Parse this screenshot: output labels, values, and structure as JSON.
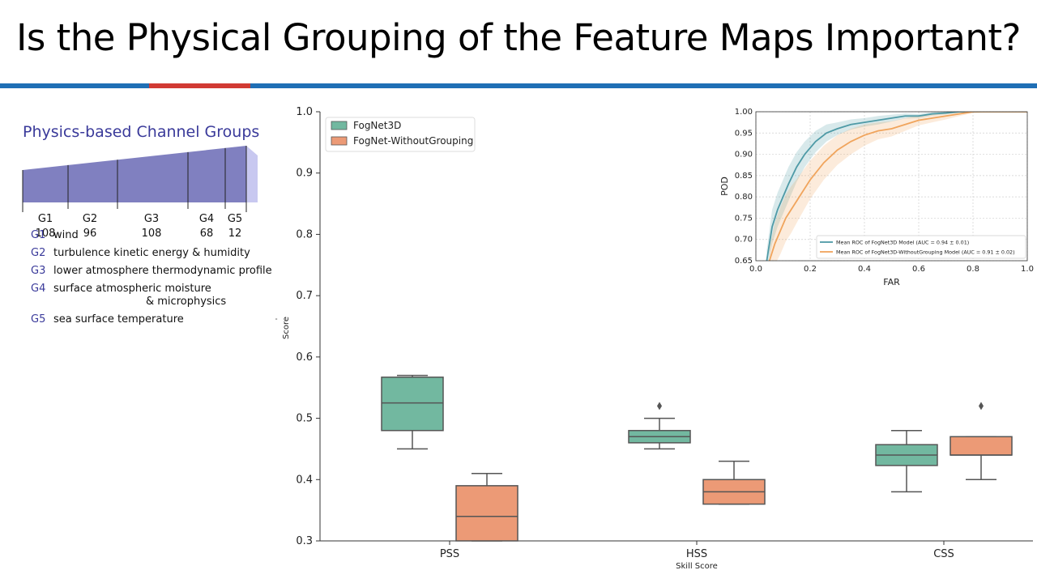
{
  "slide": {
    "title": "Is the Physical Grouping of the Feature Maps Important?"
  },
  "colors": {
    "rule_blue": "#1f6fb5",
    "rule_red": "#d13a33",
    "group_fill": "#8080c0",
    "group_fill_light": "#c8c8f0",
    "group_text": "#3a3a9a",
    "fognet3d": "#72b8a0",
    "fognet_without": "#ec9a76",
    "roc_fognet3d": "#4e9aa6",
    "roc_without": "#f0a45c"
  },
  "groups_panel": {
    "title": "Physics-based Channel Groups",
    "groups": [
      {
        "code": "G1",
        "count": "108",
        "desc": "wind",
        "desc2": ""
      },
      {
        "code": "G2",
        "count": "96",
        "desc": "turbulence kinetic energy & humidity",
        "desc2": ""
      },
      {
        "code": "G3",
        "count": "108",
        "desc": "lower atmosphere thermodynamic profile",
        "desc2": ""
      },
      {
        "code": "G4",
        "count": "68",
        "desc": "surface atmospheric moisture",
        "desc2": "& microphysics"
      },
      {
        "code": "G5",
        "count": "12",
        "desc": "sea surface temperature",
        "desc2": ""
      }
    ]
  },
  "chart_data": [
    {
      "type": "box",
      "title": "",
      "xlabel": "Skill Score",
      "ylabel": "Score",
      "ylabel_prefix": "'",
      "ylim": [
        0.3,
        1.0
      ],
      "yticks": [
        "0.3",
        "0.4",
        "0.5",
        "0.6",
        "0.7",
        "0.8",
        "0.9",
        "1.0"
      ],
      "categories": [
        "PSS",
        "HSS",
        "CSS"
      ],
      "legend_position": "top-left",
      "series": [
        {
          "name": "FogNet3D",
          "boxes": [
            {
              "whisker_low": 0.45,
              "q1": 0.48,
              "median": 0.525,
              "q3": 0.567,
              "whisker_high": 0.57,
              "outliers": []
            },
            {
              "whisker_low": 0.45,
              "q1": 0.46,
              "median": 0.47,
              "q3": 0.48,
              "whisker_high": 0.5,
              "outliers": [
                0.52
              ]
            },
            {
              "whisker_low": 0.38,
              "q1": 0.423,
              "median": 0.44,
              "q3": 0.457,
              "whisker_high": 0.48,
              "outliers": []
            }
          ]
        },
        {
          "name": "FogNet-WithoutGrouping",
          "boxes": [
            {
              "whisker_low": 0.3,
              "q1": 0.3,
              "median": 0.34,
              "q3": 0.39,
              "whisker_high": 0.41,
              "outliers": []
            },
            {
              "whisker_low": 0.36,
              "q1": 0.36,
              "median": 0.38,
              "q3": 0.4,
              "whisker_high": 0.43,
              "outliers": []
            },
            {
              "whisker_low": 0.4,
              "q1": 0.44,
              "median": 0.44,
              "q3": 0.47,
              "whisker_high": 0.47,
              "outliers": [
                0.52
              ]
            }
          ]
        }
      ]
    },
    {
      "type": "line",
      "title": "",
      "xlabel": "FAR",
      "ylabel": "POD",
      "xlim": [
        0.0,
        1.0
      ],
      "ylim": [
        0.65,
        1.0
      ],
      "xticks": [
        "0.0",
        "0.2",
        "0.4",
        "0.6",
        "0.8",
        "1.0"
      ],
      "yticks": [
        "0.65",
        "0.70",
        "0.75",
        "0.80",
        "0.85",
        "0.90",
        "0.95",
        "1.00"
      ],
      "grid": true,
      "legend_position": "bottom-right",
      "series": [
        {
          "name": "Mean ROC of FogNet3D Model (AUC = 0.94 ± 0.01)",
          "x": [
            0.04,
            0.06,
            0.08,
            0.1,
            0.12,
            0.15,
            0.18,
            0.22,
            0.26,
            0.3,
            0.35,
            0.4,
            0.45,
            0.5,
            0.55,
            0.6,
            0.65,
            0.7,
            0.75,
            0.8,
            0.9,
            1.0
          ],
          "y": [
            0.65,
            0.73,
            0.77,
            0.8,
            0.83,
            0.87,
            0.9,
            0.93,
            0.95,
            0.96,
            0.97,
            0.975,
            0.98,
            0.985,
            0.99,
            0.99,
            0.995,
            0.997,
            1.0,
            1.0,
            1.0,
            1.0
          ],
          "band": [
            0.025,
            0.04,
            0.04,
            0.04,
            0.04,
            0.035,
            0.03,
            0.025,
            0.02,
            0.015,
            0.012,
            0.01,
            0.01,
            0.008,
            0.006,
            0.005,
            0.004,
            0.003,
            0.002,
            0.0,
            0.0,
            0.0
          ]
        },
        {
          "name": "Mean ROC of FogNet3D-WithoutGrouping Model (AUC = 0.91 ± 0.02)",
          "x": [
            0.05,
            0.07,
            0.09,
            0.11,
            0.13,
            0.16,
            0.2,
            0.25,
            0.3,
            0.35,
            0.4,
            0.45,
            0.5,
            0.55,
            0.6,
            0.65,
            0.7,
            0.75,
            0.8,
            0.9,
            1.0
          ],
          "y": [
            0.65,
            0.69,
            0.72,
            0.75,
            0.77,
            0.8,
            0.84,
            0.88,
            0.91,
            0.93,
            0.945,
            0.955,
            0.96,
            0.97,
            0.98,
            0.985,
            0.99,
            0.995,
            1.0,
            1.0,
            1.0
          ],
          "band": [
            0.03,
            0.05,
            0.055,
            0.055,
            0.055,
            0.05,
            0.045,
            0.04,
            0.035,
            0.03,
            0.025,
            0.02,
            0.018,
            0.015,
            0.012,
            0.01,
            0.008,
            0.005,
            0.003,
            0.0,
            0.0
          ]
        }
      ]
    }
  ]
}
